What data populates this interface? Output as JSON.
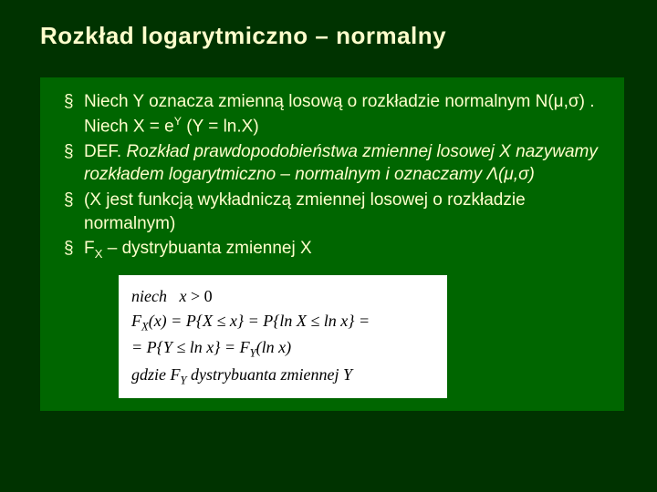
{
  "slide": {
    "title": "Rozkład  logarytmiczno – normalny",
    "bullets": [
      {
        "p1": "Niech Y  oznacza zmienną losową o rozkładzie normalnym N(μ,σ) . Niech  X = e",
        "sup": "Y",
        "p2": "    (Y = ln.X)"
      },
      {
        "p1": "DEF. ",
        "italic": "Rozkład prawdopodobieństwa zmiennej losowej X nazywamy rozkładem logarytmiczno – normalnym i oznaczamy Λ(μ,σ)"
      },
      {
        "text": "(X jest funkcją wykładniczą zmiennej losowej o rozkładzie normalnym)"
      },
      {
        "pre": "F",
        "sub": "X",
        "post": " – dystrybuanta zmiennej X"
      }
    ],
    "formula": {
      "l1a": "niech",
      "l1b": "x",
      "l1c": " > 0",
      "l2": "F",
      "l2sub": "X",
      "l2b": "(x) = P{X ≤ x} = P{ln X ≤ ln x} =",
      "l3a": "= P{Y ≤ ln x} = F",
      "l3sub": "Y",
      "l3b": "(ln x)",
      "l4a": "gdzie  F",
      "l4sub": "Y",
      "l4b": "  dystrybuanta  zmiennej Y"
    }
  },
  "colors": {
    "background": "#003300",
    "panel": "#006600",
    "text": "#ffffcc",
    "formula_bg": "#ffffff",
    "formula_text": "#000000"
  }
}
